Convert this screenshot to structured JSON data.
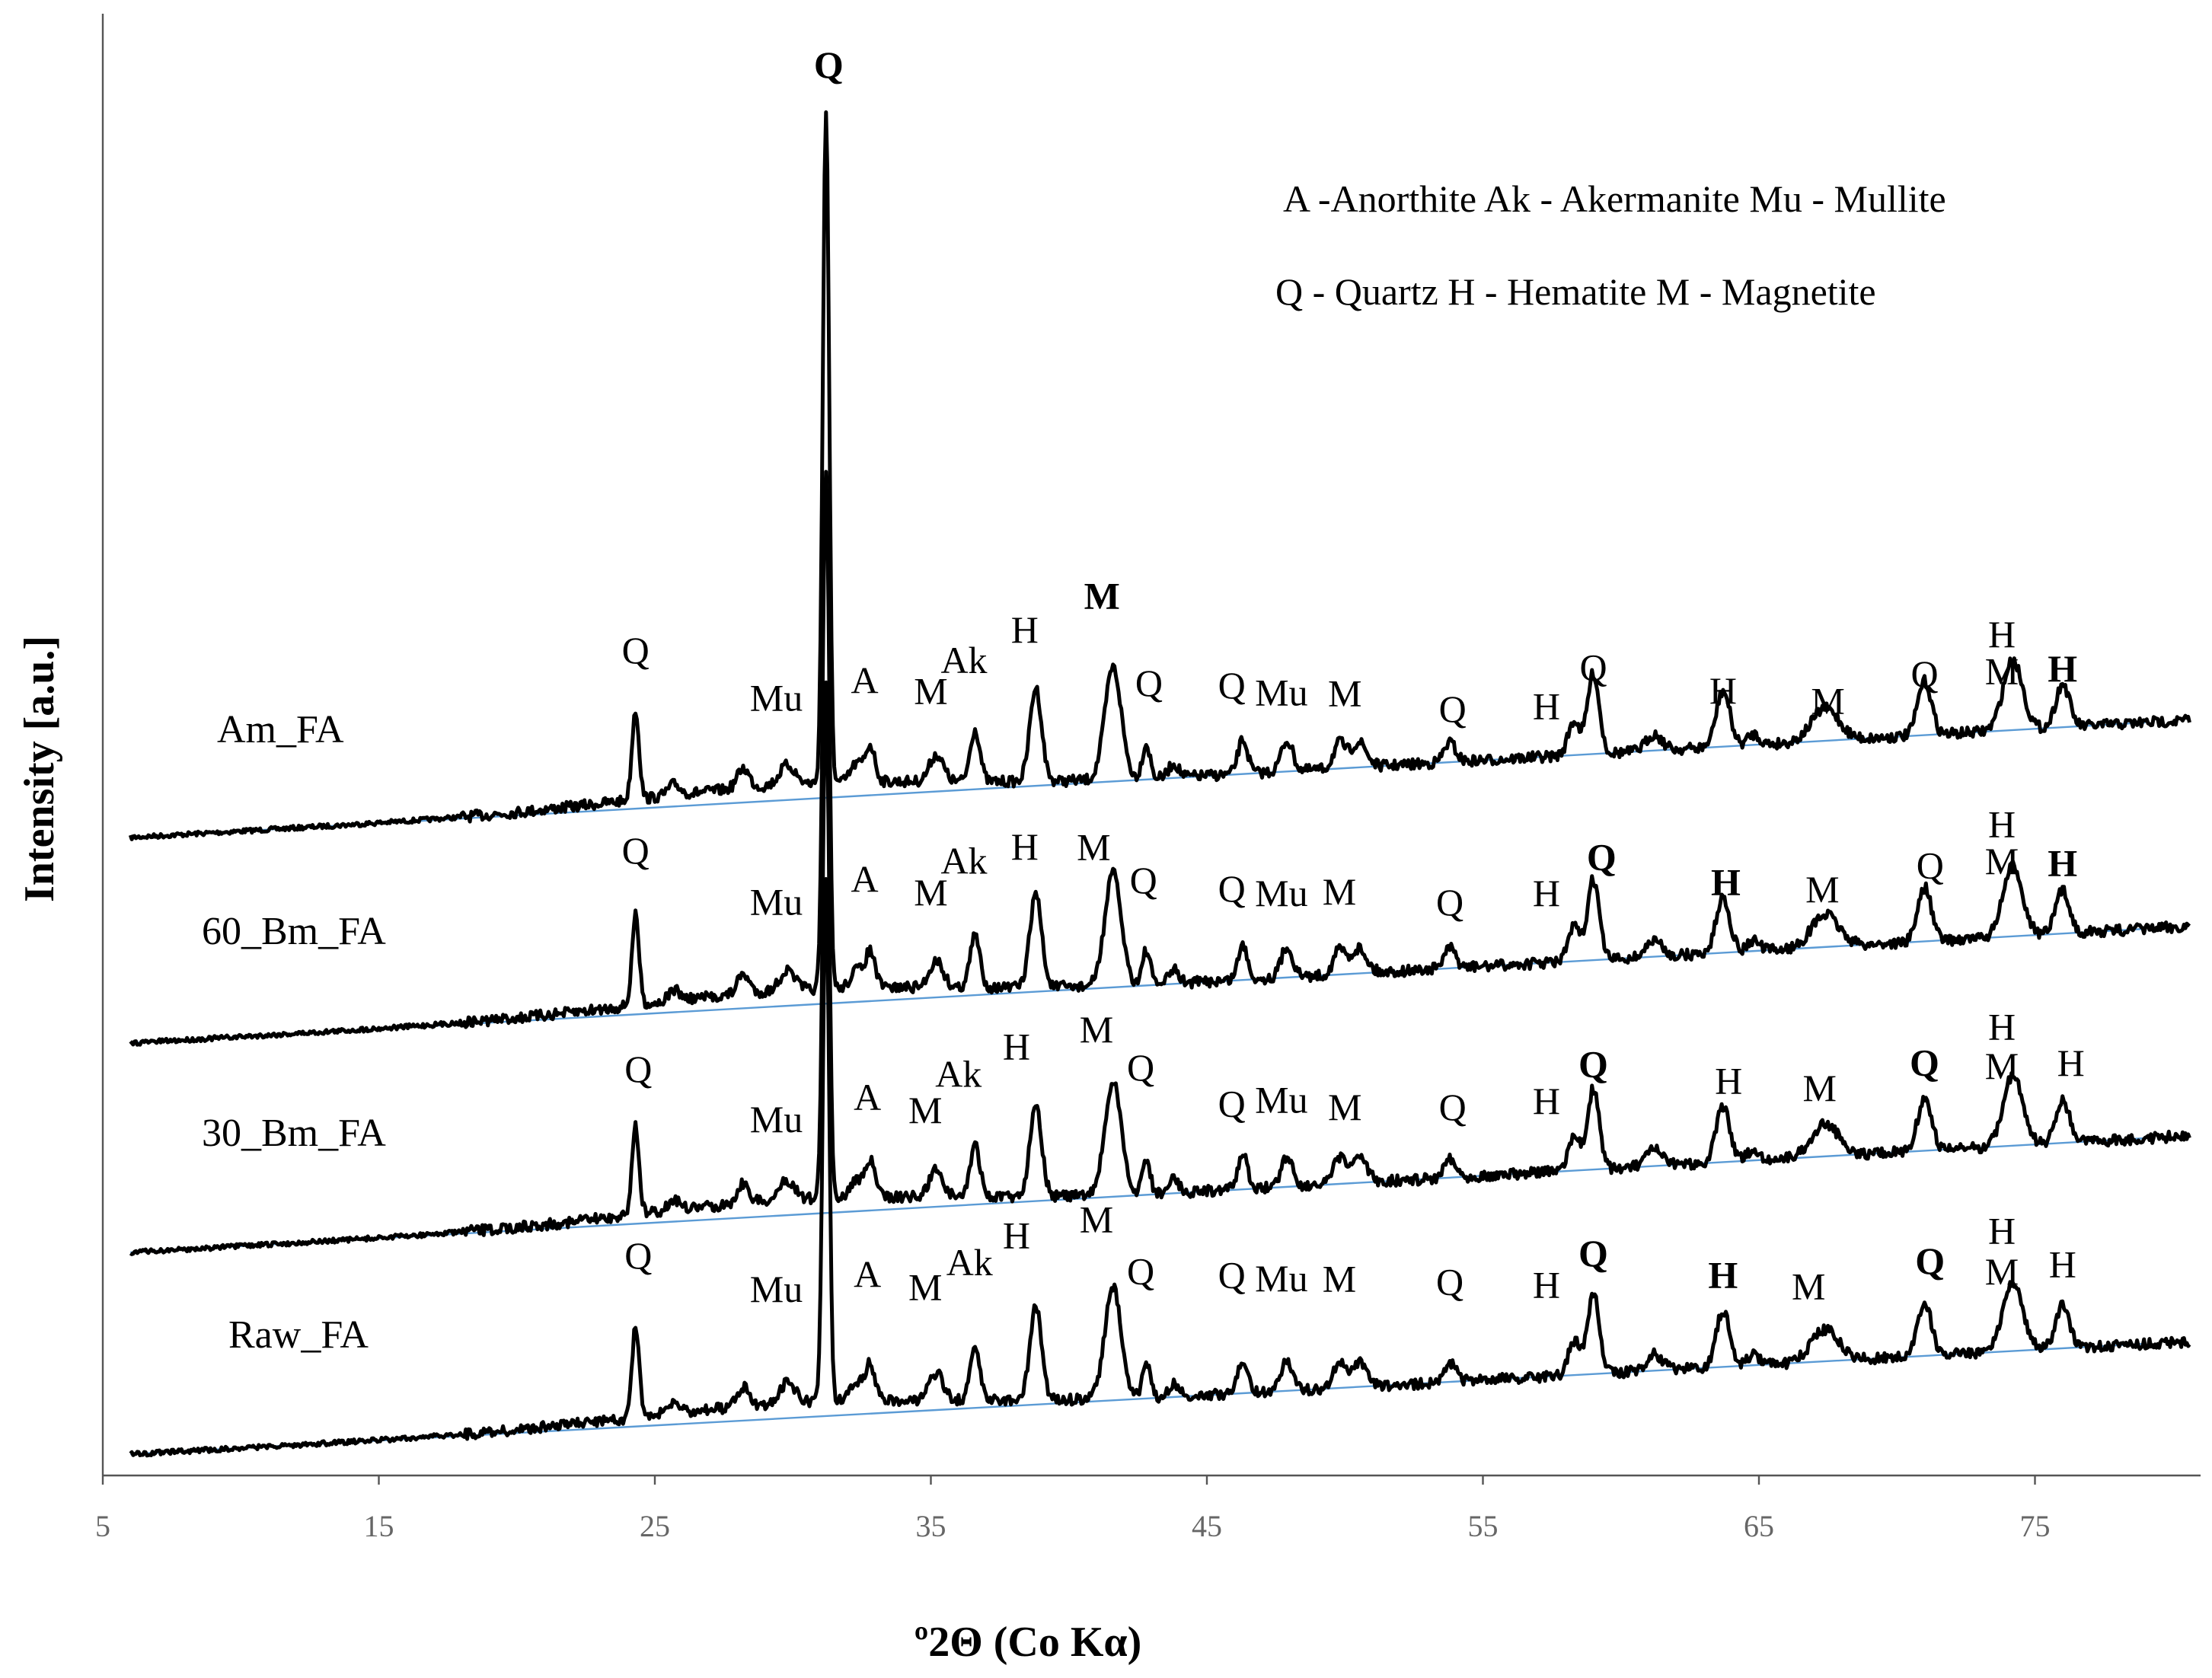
{
  "chart_data": {
    "type": "line",
    "title": "",
    "xlabel": "º2Θ (Co Kα)",
    "ylabel": "Intensity [a.u.]",
    "xlim": [
      5,
      81
    ],
    "x_ticks": [
      5,
      15,
      25,
      35,
      45,
      55,
      65,
      75
    ],
    "y_ticks_shown": false,
    "legend": {
      "placement": "top-right",
      "lines": [
        "A -Anorthite  Ak - Akermanite  Mu - Mullite",
        "Q - Quartz  H - Hematite  M - Magnetite"
      ]
    },
    "peaks": [
      {
        "x": 24.3,
        "h": 1.0,
        "w": 0.18
      },
      {
        "x": 25.7,
        "h": 0.12,
        "w": 0.3
      },
      {
        "x": 28.2,
        "h": 0.22,
        "w": 0.3
      },
      {
        "x": 29.8,
        "h": 0.22,
        "w": 0.4
      },
      {
        "x": 32.3,
        "h": 0.2,
        "w": 0.3
      },
      {
        "x": 32.8,
        "h": 0.4,
        "w": 0.25
      },
      {
        "x": 35.2,
        "h": 0.3,
        "w": 0.35
      },
      {
        "x": 36.6,
        "h": 0.58,
        "w": 0.25
      },
      {
        "x": 38.8,
        "h": 1.04,
        "w": 0.3
      },
      {
        "x": 41.6,
        "h": 1.25,
        "w": 0.42
      },
      {
        "x": 42.8,
        "h": 0.38,
        "w": 0.2
      },
      {
        "x": 43.8,
        "h": 0.15,
        "w": 0.25
      },
      {
        "x": 46.3,
        "h": 0.38,
        "w": 0.25
      },
      {
        "x": 47.9,
        "h": 0.34,
        "w": 0.3
      },
      {
        "x": 49.8,
        "h": 0.28,
        "w": 0.3
      },
      {
        "x": 50.5,
        "h": 0.28,
        "w": 0.4
      },
      {
        "x": 53.8,
        "h": 0.22,
        "w": 0.3
      },
      {
        "x": 58.3,
        "h": 0.38,
        "w": 0.3
      },
      {
        "x": 59.0,
        "h": 0.9,
        "w": 0.3
      },
      {
        "x": 61.2,
        "h": 0.18,
        "w": 0.4
      },
      {
        "x": 63.7,
        "h": 0.62,
        "w": 0.35
      },
      {
        "x": 64.8,
        "h": 0.12,
        "w": 0.3
      },
      {
        "x": 67.4,
        "h": 0.36,
        "w": 0.7
      },
      {
        "x": 71.0,
        "h": 0.6,
        "w": 0.35
      },
      {
        "x": 74.2,
        "h": 0.78,
        "w": 0.5
      },
      {
        "x": 76.0,
        "h": 0.48,
        "w": 0.35
      }
    ],
    "series": [
      {
        "name": "Am_FA",
        "baseline_start": [
          6,
          0.0
        ],
        "baseline_end": [
          79,
          0.84
        ],
        "major_peak": {
          "x": 31.2,
          "height": 5.2
        },
        "peak_labels": [
          {
            "text": "Q",
            "x": 24.3,
            "dy": 1.62
          },
          {
            "text": "Mu",
            "x": 29.4,
            "dy": 1.0
          },
          {
            "text": "A",
            "x": 32.6,
            "dy": 1.14
          },
          {
            "text": "M",
            "x": 35.0,
            "dy": 0.98
          },
          {
            "text": "Ak",
            "x": 36.2,
            "dy": 1.3
          },
          {
            "text": "H",
            "x": 38.4,
            "dy": 1.6
          },
          {
            "text": "M",
            "x": 41.2,
            "dy": 1.93,
            "bold": true
          },
          {
            "text": "Q",
            "x": 42.9,
            "dy": 0.93
          },
          {
            "text": "Q",
            "x": 45.9,
            "dy": 0.85
          },
          {
            "text": "Mu",
            "x": 47.7,
            "dy": 0.74
          },
          {
            "text": "M",
            "x": 50.0,
            "dy": 0.69
          },
          {
            "text": "Q",
            "x": 53.9,
            "dy": 0.45
          },
          {
            "text": "H",
            "x": 57.3,
            "dy": 0.42
          },
          {
            "text": "Q",
            "x": 59.0,
            "dy": 0.82
          },
          {
            "text": "H",
            "x": 63.7,
            "dy": 0.48
          },
          {
            "text": "M",
            "x": 67.5,
            "dy": 0.3
          },
          {
            "text": "Q",
            "x": 71.0,
            "dy": 0.54
          },
          {
            "text": "H",
            "x": 73.8,
            "dy": 0.93
          },
          {
            "text": "M",
            "x": 73.8,
            "dy": 0.52
          },
          {
            "text": "H",
            "x": 76.0,
            "dy": 0.51,
            "bold": true
          }
        ]
      },
      {
        "name": "60_Bm_FA",
        "baseline_start": [
          6,
          0.0
        ],
        "baseline_end": [
          79,
          0.84
        ],
        "major_peak": {
          "x": 31.2,
          "height": 4.6
        },
        "peak_labels": [
          {
            "text": "Q",
            "x": 24.3,
            "dy": 1.68
          },
          {
            "text": "Mu",
            "x": 29.4,
            "dy": 1.02
          },
          {
            "text": "A",
            "x": 32.6,
            "dy": 1.22
          },
          {
            "text": "M",
            "x": 35.0,
            "dy": 1.03
          },
          {
            "text": "Ak",
            "x": 36.2,
            "dy": 1.36
          },
          {
            "text": "H",
            "x": 38.4,
            "dy": 1.48
          },
          {
            "text": "M",
            "x": 40.9,
            "dy": 1.43
          },
          {
            "text": "Q",
            "x": 42.7,
            "dy": 1.03
          },
          {
            "text": "Q",
            "x": 45.9,
            "dy": 0.88
          },
          {
            "text": "Mu",
            "x": 47.7,
            "dy": 0.8
          },
          {
            "text": "M",
            "x": 49.8,
            "dy": 0.78
          },
          {
            "text": "Q",
            "x": 53.8,
            "dy": 0.59
          },
          {
            "text": "H",
            "x": 57.3,
            "dy": 0.63
          },
          {
            "text": "Q",
            "x": 59.3,
            "dy": 1.0,
            "bold": true
          },
          {
            "text": "H",
            "x": 63.8,
            "dy": 0.64,
            "bold": true
          },
          {
            "text": "M",
            "x": 67.3,
            "dy": 0.5
          },
          {
            "text": "Q",
            "x": 71.2,
            "dy": 0.7
          },
          {
            "text": "H",
            "x": 73.8,
            "dy": 1.11
          },
          {
            "text": "M",
            "x": 73.8,
            "dy": 0.7
          },
          {
            "text": "H",
            "x": 76.0,
            "dy": 0.64,
            "bold": true
          }
        ]
      },
      {
        "name": "30_Bm_FA",
        "baseline_start": [
          6,
          0.0
        ],
        "baseline_end": [
          79,
          0.84
        ],
        "major_peak": {
          "x": 31.2,
          "height": 4.2
        },
        "peak_labels": [
          {
            "text": "Q",
            "x": 24.4,
            "dy": 1.58
          },
          {
            "text": "Mu",
            "x": 29.4,
            "dy": 0.93
          },
          {
            "text": "A",
            "x": 32.7,
            "dy": 1.12
          },
          {
            "text": "M",
            "x": 34.8,
            "dy": 0.94
          },
          {
            "text": "Ak",
            "x": 36.0,
            "dy": 1.32
          },
          {
            "text": "H",
            "x": 38.1,
            "dy": 1.59
          },
          {
            "text": "M",
            "x": 41.0,
            "dy": 1.73
          },
          {
            "text": "Q",
            "x": 42.6,
            "dy": 1.28
          },
          {
            "text": "Q",
            "x": 45.9,
            "dy": 0.82
          },
          {
            "text": "Mu",
            "x": 47.7,
            "dy": 0.83
          },
          {
            "text": "M",
            "x": 50.0,
            "dy": 0.71
          },
          {
            "text": "Q",
            "x": 53.9,
            "dy": 0.64
          },
          {
            "text": "H",
            "x": 57.3,
            "dy": 0.65
          },
          {
            "text": "Q",
            "x": 59.0,
            "dy": 1.03,
            "bold": true
          },
          {
            "text": "H",
            "x": 63.9,
            "dy": 0.76
          },
          {
            "text": "M",
            "x": 67.2,
            "dy": 0.62
          },
          {
            "text": "Q",
            "x": 71.0,
            "dy": 0.84,
            "bold": true
          },
          {
            "text": "H",
            "x": 73.8,
            "dy": 1.19
          },
          {
            "text": "M",
            "x": 73.8,
            "dy": 0.75
          },
          {
            "text": "H",
            "x": 76.3,
            "dy": 0.74
          }
        ]
      },
      {
        "name": "Raw_FA",
        "baseline_start": [
          6,
          0.0
        ],
        "baseline_end": [
          79,
          0.84
        ],
        "major_peak": {
          "x": 31.2,
          "height": 3.5
        },
        "peak_labels": [
          {
            "text": "Q",
            "x": 24.4,
            "dy": 1.76
          },
          {
            "text": "Mu",
            "x": 29.4,
            "dy": 1.3
          },
          {
            "text": "A",
            "x": 32.7,
            "dy": 1.41
          },
          {
            "text": "M",
            "x": 34.8,
            "dy": 1.23
          },
          {
            "text": "Ak",
            "x": 36.4,
            "dy": 1.48
          },
          {
            "text": "H",
            "x": 38.1,
            "dy": 1.75
          },
          {
            "text": "M",
            "x": 41.0,
            "dy": 1.88
          },
          {
            "text": "Q",
            "x": 42.6,
            "dy": 1.28
          },
          {
            "text": "Q",
            "x": 45.9,
            "dy": 1.18
          },
          {
            "text": "Mu",
            "x": 47.7,
            "dy": 1.11
          },
          {
            "text": "M",
            "x": 49.8,
            "dy": 1.07
          },
          {
            "text": "Q",
            "x": 53.8,
            "dy": 0.97
          },
          {
            "text": "H",
            "x": 57.3,
            "dy": 0.88
          },
          {
            "text": "Q",
            "x": 59.0,
            "dy": 1.2,
            "bold": true
          },
          {
            "text": "H",
            "x": 63.7,
            "dy": 0.88,
            "bold": true
          },
          {
            "text": "M",
            "x": 66.8,
            "dy": 0.7
          },
          {
            "text": "Q",
            "x": 71.2,
            "dy": 0.91,
            "bold": true
          },
          {
            "text": "H",
            "x": 73.8,
            "dy": 1.2
          },
          {
            "text": "M",
            "x": 73.8,
            "dy": 0.75
          },
          {
            "text": "H",
            "x": 76.0,
            "dy": 0.79
          }
        ]
      }
    ],
    "colors": {
      "trace": "#000000",
      "baseline": "#5b9bd5",
      "axis": "#555555",
      "tick_text": "#666666"
    }
  }
}
